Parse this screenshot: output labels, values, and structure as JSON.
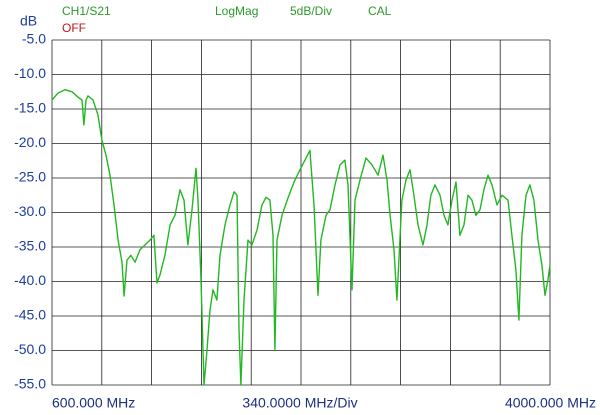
{
  "chart_data": {
    "type": "line",
    "y_unit": "dB",
    "status": "OFF",
    "format": "LogMag",
    "scale": "5dB/Div",
    "calibration": "CAL",
    "start_label": "600.000 MHz",
    "span_label": "340.0000 MHz/Div",
    "stop_label": "4000.000 MHz",
    "grid": true,
    "xlim": [
      600,
      4000
    ],
    "xticks": [
      600,
      940,
      1280,
      1620,
      1960,
      2300,
      2640,
      2980,
      3320,
      3660,
      4000
    ],
    "ylim": [
      -55,
      -5
    ],
    "yticks": [
      {
        "value": -5,
        "label": "-5.0"
      },
      {
        "value": -10,
        "label": "-10.0"
      },
      {
        "value": -15,
        "label": "-15.0"
      },
      {
        "value": -20,
        "label": "-20.0"
      },
      {
        "value": -25,
        "label": "-25.0"
      },
      {
        "value": -30,
        "label": "-30.0"
      },
      {
        "value": -35,
        "label": "-35.0"
      },
      {
        "value": -40,
        "label": "-40.0"
      },
      {
        "value": -45,
        "label": "-45.0"
      },
      {
        "value": -50,
        "label": "-50.0"
      },
      {
        "value": -55,
        "label": "-55.0"
      }
    ],
    "x": [
      600,
      641,
      689,
      737,
      778,
      805,
      818,
      832,
      846,
      880,
      914,
      941,
      969,
      996,
      1023,
      1051,
      1078,
      1092,
      1112,
      1139,
      1167,
      1201,
      1235,
      1269,
      1296,
      1317,
      1337,
      1371,
      1406,
      1440,
      1474,
      1501,
      1528,
      1556,
      1583,
      1597,
      1617,
      1638,
      1658,
      1679,
      1699,
      1726,
      1747,
      1781,
      1815,
      1843,
      1863,
      1877,
      1890,
      1911,
      1938,
      1965,
      2000,
      2034,
      2061,
      2088,
      2109,
      2122,
      2136,
      2170,
      2211,
      2252,
      2293,
      2327,
      2361,
      2389,
      2416,
      2436,
      2471,
      2498,
      2532,
      2566,
      2600,
      2621,
      2648,
      2669,
      2703,
      2744,
      2785,
      2826,
      2860,
      2887,
      2908,
      2935,
      2955,
      2989,
      3017,
      3044,
      3071,
      3099,
      3133,
      3160,
      3187,
      3215,
      3249,
      3276,
      3303,
      3331,
      3358,
      3385,
      3413,
      3440,
      3467,
      3494,
      3522,
      3549,
      3577,
      3604,
      3638,
      3672,
      3713,
      3740,
      3767,
      3788,
      3808,
      3836,
      3863,
      3890,
      3918,
      3945,
      3966,
      3986,
      4000
    ],
    "series": [
      {
        "name": "CH1/S21",
        "color": "#22b822",
        "values": [
          -13.7,
          -12.7,
          -12.2,
          -12.5,
          -13.3,
          -13.7,
          -17.3,
          -13.7,
          -13.1,
          -13.7,
          -15.9,
          -19.5,
          -21.7,
          -24.6,
          -28.9,
          -34.0,
          -37.2,
          -42.1,
          -36.9,
          -36.2,
          -37.2,
          -35.4,
          -34.7,
          -34.0,
          -33.3,
          -40.2,
          -39.1,
          -36.2,
          -31.8,
          -30.4,
          -26.7,
          -28.2,
          -34.7,
          -29.6,
          -23.6,
          -28.2,
          -39.8,
          -55.0,
          -49.9,
          -44.1,
          -41.2,
          -42.7,
          -36.2,
          -31.8,
          -28.9,
          -27.0,
          -27.5,
          -47.0,
          -55.0,
          -42.7,
          -34.0,
          -34.7,
          -32.5,
          -28.9,
          -27.8,
          -28.2,
          -33.3,
          -49.9,
          -34.0,
          -30.4,
          -27.9,
          -25.6,
          -23.8,
          -22.4,
          -21.0,
          -28.9,
          -42.0,
          -34.0,
          -30.4,
          -29.6,
          -26.0,
          -23.1,
          -22.4,
          -26.0,
          -41.2,
          -28.2,
          -25.3,
          -22.1,
          -23.1,
          -24.6,
          -21.7,
          -25.3,
          -30.4,
          -35.4,
          -42.7,
          -28.2,
          -25.3,
          -23.8,
          -27.5,
          -31.8,
          -34.7,
          -31.8,
          -27.5,
          -26.0,
          -27.5,
          -30.4,
          -31.8,
          -28.2,
          -25.6,
          -33.3,
          -31.8,
          -27.5,
          -28.2,
          -30.4,
          -29.6,
          -26.7,
          -24.6,
          -26.0,
          -28.9,
          -27.5,
          -28.2,
          -33.3,
          -38.3,
          -45.6,
          -33.3,
          -27.5,
          -26.0,
          -28.2,
          -34.0,
          -37.6,
          -42.0,
          -39.8,
          -37.6
        ]
      }
    ]
  }
}
